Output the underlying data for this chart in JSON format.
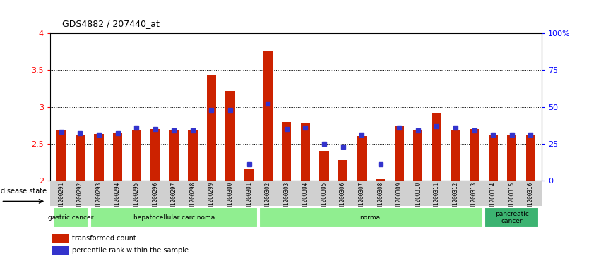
{
  "title": "GDS4882 / 207440_at",
  "samples": [
    "GSM1200291",
    "GSM1200292",
    "GSM1200293",
    "GSM1200294",
    "GSM1200295",
    "GSM1200296",
    "GSM1200297",
    "GSM1200298",
    "GSM1200299",
    "GSM1200300",
    "GSM1200301",
    "GSM1200302",
    "GSM1200303",
    "GSM1200304",
    "GSM1200305",
    "GSM1200306",
    "GSM1200307",
    "GSM1200308",
    "GSM1200309",
    "GSM1200310",
    "GSM1200311",
    "GSM1200312",
    "GSM1200313",
    "GSM1200314",
    "GSM1200315",
    "GSM1200316"
  ],
  "transformed_count": [
    2.68,
    2.62,
    2.63,
    2.65,
    2.68,
    2.7,
    2.69,
    2.68,
    3.44,
    3.22,
    2.15,
    3.75,
    2.79,
    2.78,
    2.4,
    2.28,
    2.6,
    2.02,
    2.74,
    2.69,
    2.92,
    2.69,
    2.7,
    2.62,
    2.62,
    2.62
  ],
  "percentile_rank_pct": [
    33,
    32,
    31,
    32,
    36,
    35,
    34,
    34,
    48,
    48,
    11,
    52,
    35,
    36,
    25,
    23,
    31,
    11,
    36,
    34,
    37,
    36,
    34,
    31,
    31,
    31
  ],
  "group_bounds": [
    {
      "start": 0,
      "end": 1,
      "label": "gastric cancer",
      "color": "#90EE90"
    },
    {
      "start": 2,
      "end": 10,
      "label": "hepatocellular carcinoma",
      "color": "#90EE90"
    },
    {
      "start": 11,
      "end": 22,
      "label": "normal",
      "color": "#90EE90"
    },
    {
      "start": 23,
      "end": 25,
      "label": "pancreatic\ncancer",
      "color": "#3CB371"
    }
  ],
  "ylim_left": [
    2.0,
    4.0
  ],
  "ylim_right": [
    0,
    100
  ],
  "yticks_left": [
    2.0,
    2.5,
    3.0,
    3.5,
    4.0
  ],
  "yticks_right": [
    0,
    25,
    50,
    75,
    100
  ],
  "bar_color": "#CC2200",
  "blue_color": "#3333CC",
  "bg_plot": "#ffffff",
  "bg_xtick": "#d0d0d0",
  "bar_width": 0.5
}
